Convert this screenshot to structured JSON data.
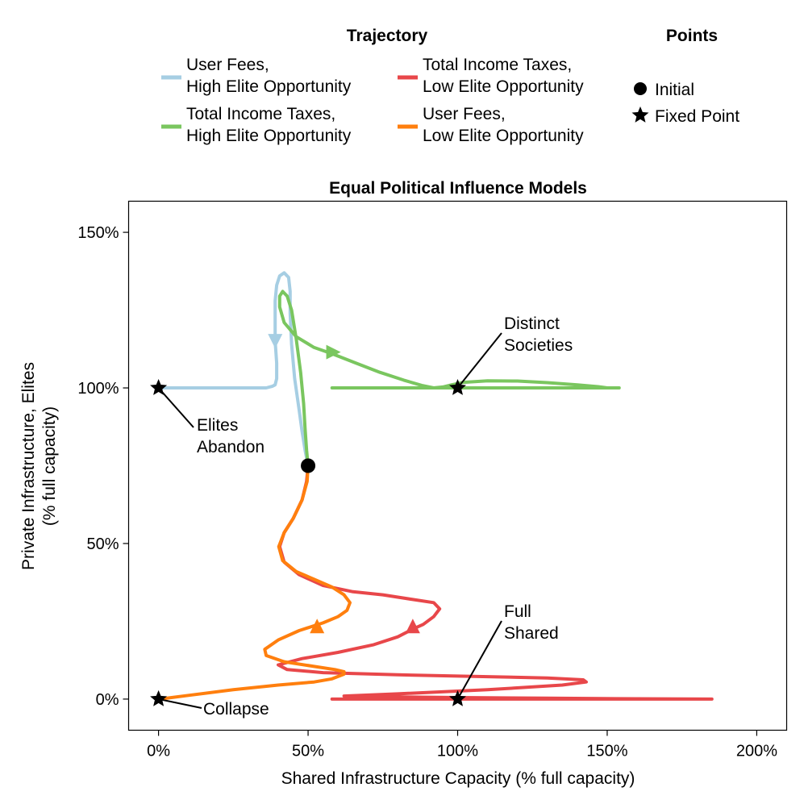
{
  "chart_data": {
    "type": "line",
    "title": "Equal Political Influence Models",
    "xlabel": "Shared Infrastructure Capacity (% full capacity)",
    "ylabel_line1": "Private Infrastructure, Elites",
    "ylabel_line2": "(% full capacity)",
    "xlim": [
      -0.1,
      2.1
    ],
    "ylim": [
      -0.1,
      1.6
    ],
    "x_ticks": [
      0,
      0.5,
      1.0,
      1.5,
      2.0
    ],
    "x_tick_labels": [
      "0%",
      "50%",
      "100%",
      "150%",
      "200%"
    ],
    "y_ticks": [
      0,
      0.5,
      1.0,
      1.5
    ],
    "y_tick_labels": [
      "0%",
      "50%",
      "100%",
      "150%"
    ],
    "grid": false,
    "legend": {
      "placement": "top",
      "trajectory_title": "Trajectory",
      "points_title": "Points"
    },
    "series": [
      {
        "name": "User Fees,\nHigh Elite Opportunity",
        "color": "#a6cee3",
        "points": [
          [
            0.5,
            0.75
          ],
          [
            0.49,
            0.8
          ],
          [
            0.48,
            0.86
          ],
          [
            0.47,
            0.93
          ],
          [
            0.455,
            1.03
          ],
          [
            0.445,
            1.14
          ],
          [
            0.44,
            1.24
          ],
          [
            0.44,
            1.31
          ],
          [
            0.435,
            1.355
          ],
          [
            0.42,
            1.37
          ],
          [
            0.405,
            1.36
          ],
          [
            0.395,
            1.33
          ],
          [
            0.39,
            1.28
          ],
          [
            0.39,
            1.22
          ],
          [
            0.39,
            1.15
          ],
          [
            0.395,
            1.08
          ],
          [
            0.395,
            1.03
          ],
          [
            0.39,
            1.01
          ],
          [
            0.38,
            1.005
          ],
          [
            0.36,
            1.0
          ],
          [
            0.3,
            1.0
          ],
          [
            0.2,
            1.0
          ],
          [
            0.1,
            1.0
          ],
          [
            0.05,
            1.0
          ],
          [
            0.0,
            1.0
          ]
        ],
        "arrows": [
          {
            "x": 0.39,
            "y": 1.15,
            "dir": "down"
          }
        ]
      },
      {
        "name": "Total Income Taxes,\nHigh Elite Opportunity",
        "color": "#7ac65f",
        "points": [
          [
            0.5,
            0.75
          ],
          [
            0.495,
            0.8
          ],
          [
            0.49,
            0.87
          ],
          [
            0.485,
            0.95
          ],
          [
            0.475,
            1.05
          ],
          [
            0.46,
            1.16
          ],
          [
            0.445,
            1.25
          ],
          [
            0.43,
            1.295
          ],
          [
            0.415,
            1.31
          ],
          [
            0.405,
            1.295
          ],
          [
            0.405,
            1.26
          ],
          [
            0.42,
            1.21
          ],
          [
            0.46,
            1.165
          ],
          [
            0.52,
            1.13
          ],
          [
            0.58,
            1.11
          ],
          [
            0.66,
            1.08
          ],
          [
            0.74,
            1.05
          ],
          [
            0.82,
            1.025
          ],
          [
            0.88,
            1.008
          ],
          [
            0.92,
            1.0
          ],
          [
            0.95,
            1.003
          ],
          [
            0.98,
            1.01
          ],
          [
            1.02,
            1.018
          ],
          [
            1.1,
            1.023
          ],
          [
            1.2,
            1.022
          ],
          [
            1.3,
            1.017
          ],
          [
            1.4,
            1.01
          ],
          [
            1.47,
            1.004
          ],
          [
            1.5,
            1.0
          ],
          [
            1.54,
            1.0
          ],
          [
            1.4,
            1.0
          ],
          [
            1.2,
            1.0
          ],
          [
            1.0,
            1.0
          ],
          [
            0.8,
            1.0
          ],
          [
            0.58,
            1.0
          ]
        ],
        "arrows": [
          {
            "x": 0.585,
            "y": 1.115,
            "dir": "right"
          }
        ]
      },
      {
        "name": "Total Income Taxes,\nLow Elite Opportunity",
        "color": "#e8474a",
        "points": [
          [
            0.5,
            0.75
          ],
          [
            0.495,
            0.7
          ],
          [
            0.48,
            0.64
          ],
          [
            0.45,
            0.58
          ],
          [
            0.42,
            0.535
          ],
          [
            0.405,
            0.49
          ],
          [
            0.42,
            0.44
          ],
          [
            0.47,
            0.4
          ],
          [
            0.55,
            0.365
          ],
          [
            0.65,
            0.345
          ],
          [
            0.75,
            0.335
          ],
          [
            0.85,
            0.32
          ],
          [
            0.92,
            0.31
          ],
          [
            0.94,
            0.29
          ],
          [
            0.92,
            0.265
          ],
          [
            0.885,
            0.24
          ],
          [
            0.85,
            0.225
          ],
          [
            0.8,
            0.2
          ],
          [
            0.72,
            0.175
          ],
          [
            0.6,
            0.15
          ],
          [
            0.48,
            0.13
          ],
          [
            0.4,
            0.11
          ],
          [
            0.43,
            0.095
          ],
          [
            0.55,
            0.085
          ],
          [
            0.8,
            0.078
          ],
          [
            1.1,
            0.072
          ],
          [
            1.3,
            0.068
          ],
          [
            1.42,
            0.062
          ],
          [
            1.43,
            0.055
          ],
          [
            1.35,
            0.045
          ],
          [
            1.1,
            0.03
          ],
          [
            0.8,
            0.017
          ],
          [
            0.62,
            0.01
          ],
          [
            0.72,
            0.008
          ],
          [
            1.0,
            0.005
          ],
          [
            1.3,
            0.003
          ],
          [
            1.6,
            0.001
          ],
          [
            1.85,
            0.0
          ],
          [
            1.5,
            0.0
          ],
          [
            1.0,
            0.0
          ],
          [
            0.58,
            0.0
          ]
        ],
        "arrows": [
          {
            "x": 0.85,
            "y": 0.235,
            "dir": "up"
          }
        ]
      },
      {
        "name": "User Fees,\nLow Elite Opportunity",
        "color": "#ff7f0e",
        "points": [
          [
            0.5,
            0.75
          ],
          [
            0.497,
            0.7
          ],
          [
            0.48,
            0.64
          ],
          [
            0.45,
            0.58
          ],
          [
            0.42,
            0.535
          ],
          [
            0.402,
            0.49
          ],
          [
            0.415,
            0.445
          ],
          [
            0.46,
            0.41
          ],
          [
            0.52,
            0.385
          ],
          [
            0.58,
            0.36
          ],
          [
            0.62,
            0.335
          ],
          [
            0.64,
            0.31
          ],
          [
            0.63,
            0.285
          ],
          [
            0.6,
            0.265
          ],
          [
            0.55,
            0.245
          ],
          [
            0.47,
            0.22
          ],
          [
            0.4,
            0.19
          ],
          [
            0.355,
            0.16
          ],
          [
            0.36,
            0.14
          ],
          [
            0.42,
            0.12
          ],
          [
            0.52,
            0.105
          ],
          [
            0.59,
            0.095
          ],
          [
            0.62,
            0.088
          ],
          [
            0.62,
            0.08
          ],
          [
            0.58,
            0.065
          ],
          [
            0.52,
            0.055
          ],
          [
            0.4,
            0.045
          ],
          [
            0.25,
            0.03
          ],
          [
            0.1,
            0.012
          ],
          [
            0.02,
            0.002
          ],
          [
            0.0,
            0.0
          ]
        ],
        "arrows": [
          {
            "x": 0.53,
            "y": 0.235,
            "dir": "up"
          }
        ]
      }
    ],
    "markers": [
      {
        "kind": "initial",
        "x": 0.5,
        "y": 0.75
      },
      {
        "kind": "fixed",
        "x": 0.0,
        "y": 1.0
      },
      {
        "kind": "fixed",
        "x": 1.0,
        "y": 1.0
      },
      {
        "kind": "fixed",
        "x": 0.0,
        "y": 0.0
      },
      {
        "kind": "fixed",
        "x": 1.0,
        "y": 0.0
      }
    ],
    "annotations": [
      {
        "text": [
          "Distinct",
          "Societies"
        ],
        "target": [
          1.0,
          1.0
        ]
      },
      {
        "text": [
          "Elites",
          "Abandon"
        ],
        "target": [
          0.0,
          1.0
        ]
      },
      {
        "text": [
          "Full",
          "Shared"
        ],
        "target": [
          1.0,
          0.0
        ]
      },
      {
        "text": [
          "Collapse"
        ],
        "target": [
          0.0,
          0.0
        ]
      }
    ],
    "point_legend": [
      {
        "kind": "initial",
        "label": "Initial"
      },
      {
        "kind": "fixed",
        "label": "Fixed Point"
      }
    ]
  }
}
